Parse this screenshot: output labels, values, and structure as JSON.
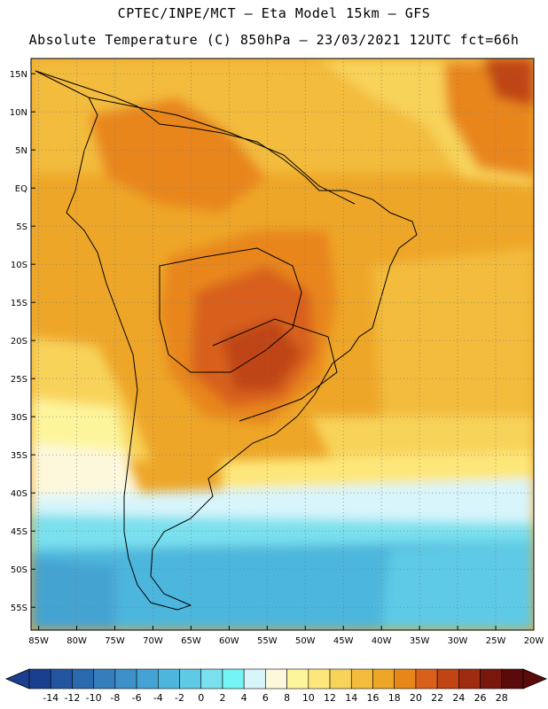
{
  "header": {
    "line1": "CPTEC/INPE/MCT –  Eta Model 15km – GFS",
    "line2": "Absolute Temperature (C) 850hPa – 23/03/2021 12UTC fct=66h"
  },
  "map": {
    "lat_labels": [
      "15N",
      "10N",
      "5N",
      "EQ",
      "5S",
      "10S",
      "15S",
      "20S",
      "25S",
      "30S",
      "35S",
      "40S",
      "45S",
      "50S",
      "55S"
    ],
    "lat_values": [
      15,
      10,
      5,
      0,
      -5,
      -10,
      -15,
      -20,
      -25,
      -30,
      -35,
      -40,
      -45,
      -50,
      -55
    ],
    "lon_labels": [
      "85W",
      "80W",
      "75W",
      "70W",
      "65W",
      "60W",
      "55W",
      "50W",
      "45W",
      "40W",
      "35W",
      "30W",
      "25W",
      "20W"
    ],
    "lon_values": [
      -85,
      -80,
      -75,
      -70,
      -65,
      -60,
      -55,
      -50,
      -45,
      -40,
      -35,
      -30,
      -25,
      -20
    ],
    "lat_range": [
      -58,
      17
    ],
    "lon_range": [
      -86,
      -20
    ]
  },
  "colorbar": {
    "labels": [
      "-14",
      "-12",
      "-10",
      "-8",
      "-6",
      "-4",
      "-2",
      "0",
      "2",
      "4",
      "6",
      "8",
      "10",
      "12",
      "14",
      "16",
      "18",
      "20",
      "22",
      "24",
      "26",
      "28"
    ],
    "colors": [
      "#1b3f8f",
      "#22559f",
      "#2b6aae",
      "#347ebb",
      "#3d91c8",
      "#44a3d2",
      "#4eb6dc",
      "#5fcae5",
      "#7ae0ee",
      "#74f4f4",
      "#d8f5fb",
      "#fdf8dc",
      "#fdf59c",
      "#fde77a",
      "#f8d35a",
      "#f3bc3c",
      "#eea628",
      "#e8861a",
      "#d8601a",
      "#c04414",
      "#9f2b10",
      "#7a170c",
      "#5a0a08"
    ]
  }
}
